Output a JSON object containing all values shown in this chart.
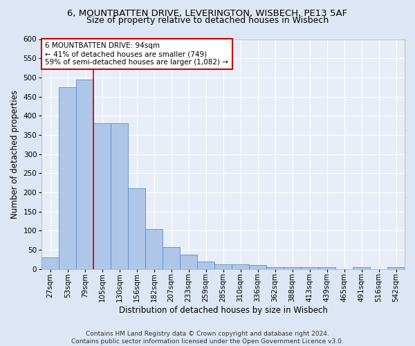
{
  "title_line1": "6, MOUNTBATTEN DRIVE, LEVERINGTON, WISBECH, PE13 5AF",
  "title_line2": "Size of property relative to detached houses in Wisbech",
  "xlabel": "Distribution of detached houses by size in Wisbech",
  "ylabel": "Number of detached properties",
  "footnote": "Contains HM Land Registry data © Crown copyright and database right 2024.\nContains public sector information licensed under the Open Government Licence v3.0.",
  "categories": [
    "27sqm",
    "53sqm",
    "79sqm",
    "105sqm",
    "130sqm",
    "156sqm",
    "182sqm",
    "207sqm",
    "233sqm",
    "259sqm",
    "285sqm",
    "310sqm",
    "336sqm",
    "362sqm",
    "388sqm",
    "413sqm",
    "439sqm",
    "465sqm",
    "491sqm",
    "516sqm",
    "542sqm"
  ],
  "values": [
    30,
    475,
    495,
    380,
    380,
    210,
    105,
    57,
    38,
    20,
    13,
    13,
    10,
    5,
    5,
    5,
    5,
    0,
    5,
    0,
    5
  ],
  "bar_color": "#aec6e8",
  "bar_edge_color": "#5a8fc2",
  "annotation_box_text": "6 MOUNTBATTEN DRIVE: 94sqm\n← 41% of detached houses are smaller (749)\n59% of semi-detached houses are larger (1,082) →",
  "annotation_box_color": "#ffffff",
  "annotation_box_edge_color": "#cc0000",
  "vline_color": "#cc0000",
  "vline_x": 2.5,
  "ylim": [
    0,
    600
  ],
  "yticks": [
    0,
    50,
    100,
    150,
    200,
    250,
    300,
    350,
    400,
    450,
    500,
    550,
    600
  ],
  "background_color": "#dce6f5",
  "plot_bg_color": "#e8eef8",
  "grid_color": "#ffffff",
  "title_fontsize": 9.5,
  "subtitle_fontsize": 9,
  "axis_label_fontsize": 8.5,
  "tick_fontsize": 7.5,
  "annotation_fontsize": 7.5,
  "footnote_fontsize": 6.5
}
